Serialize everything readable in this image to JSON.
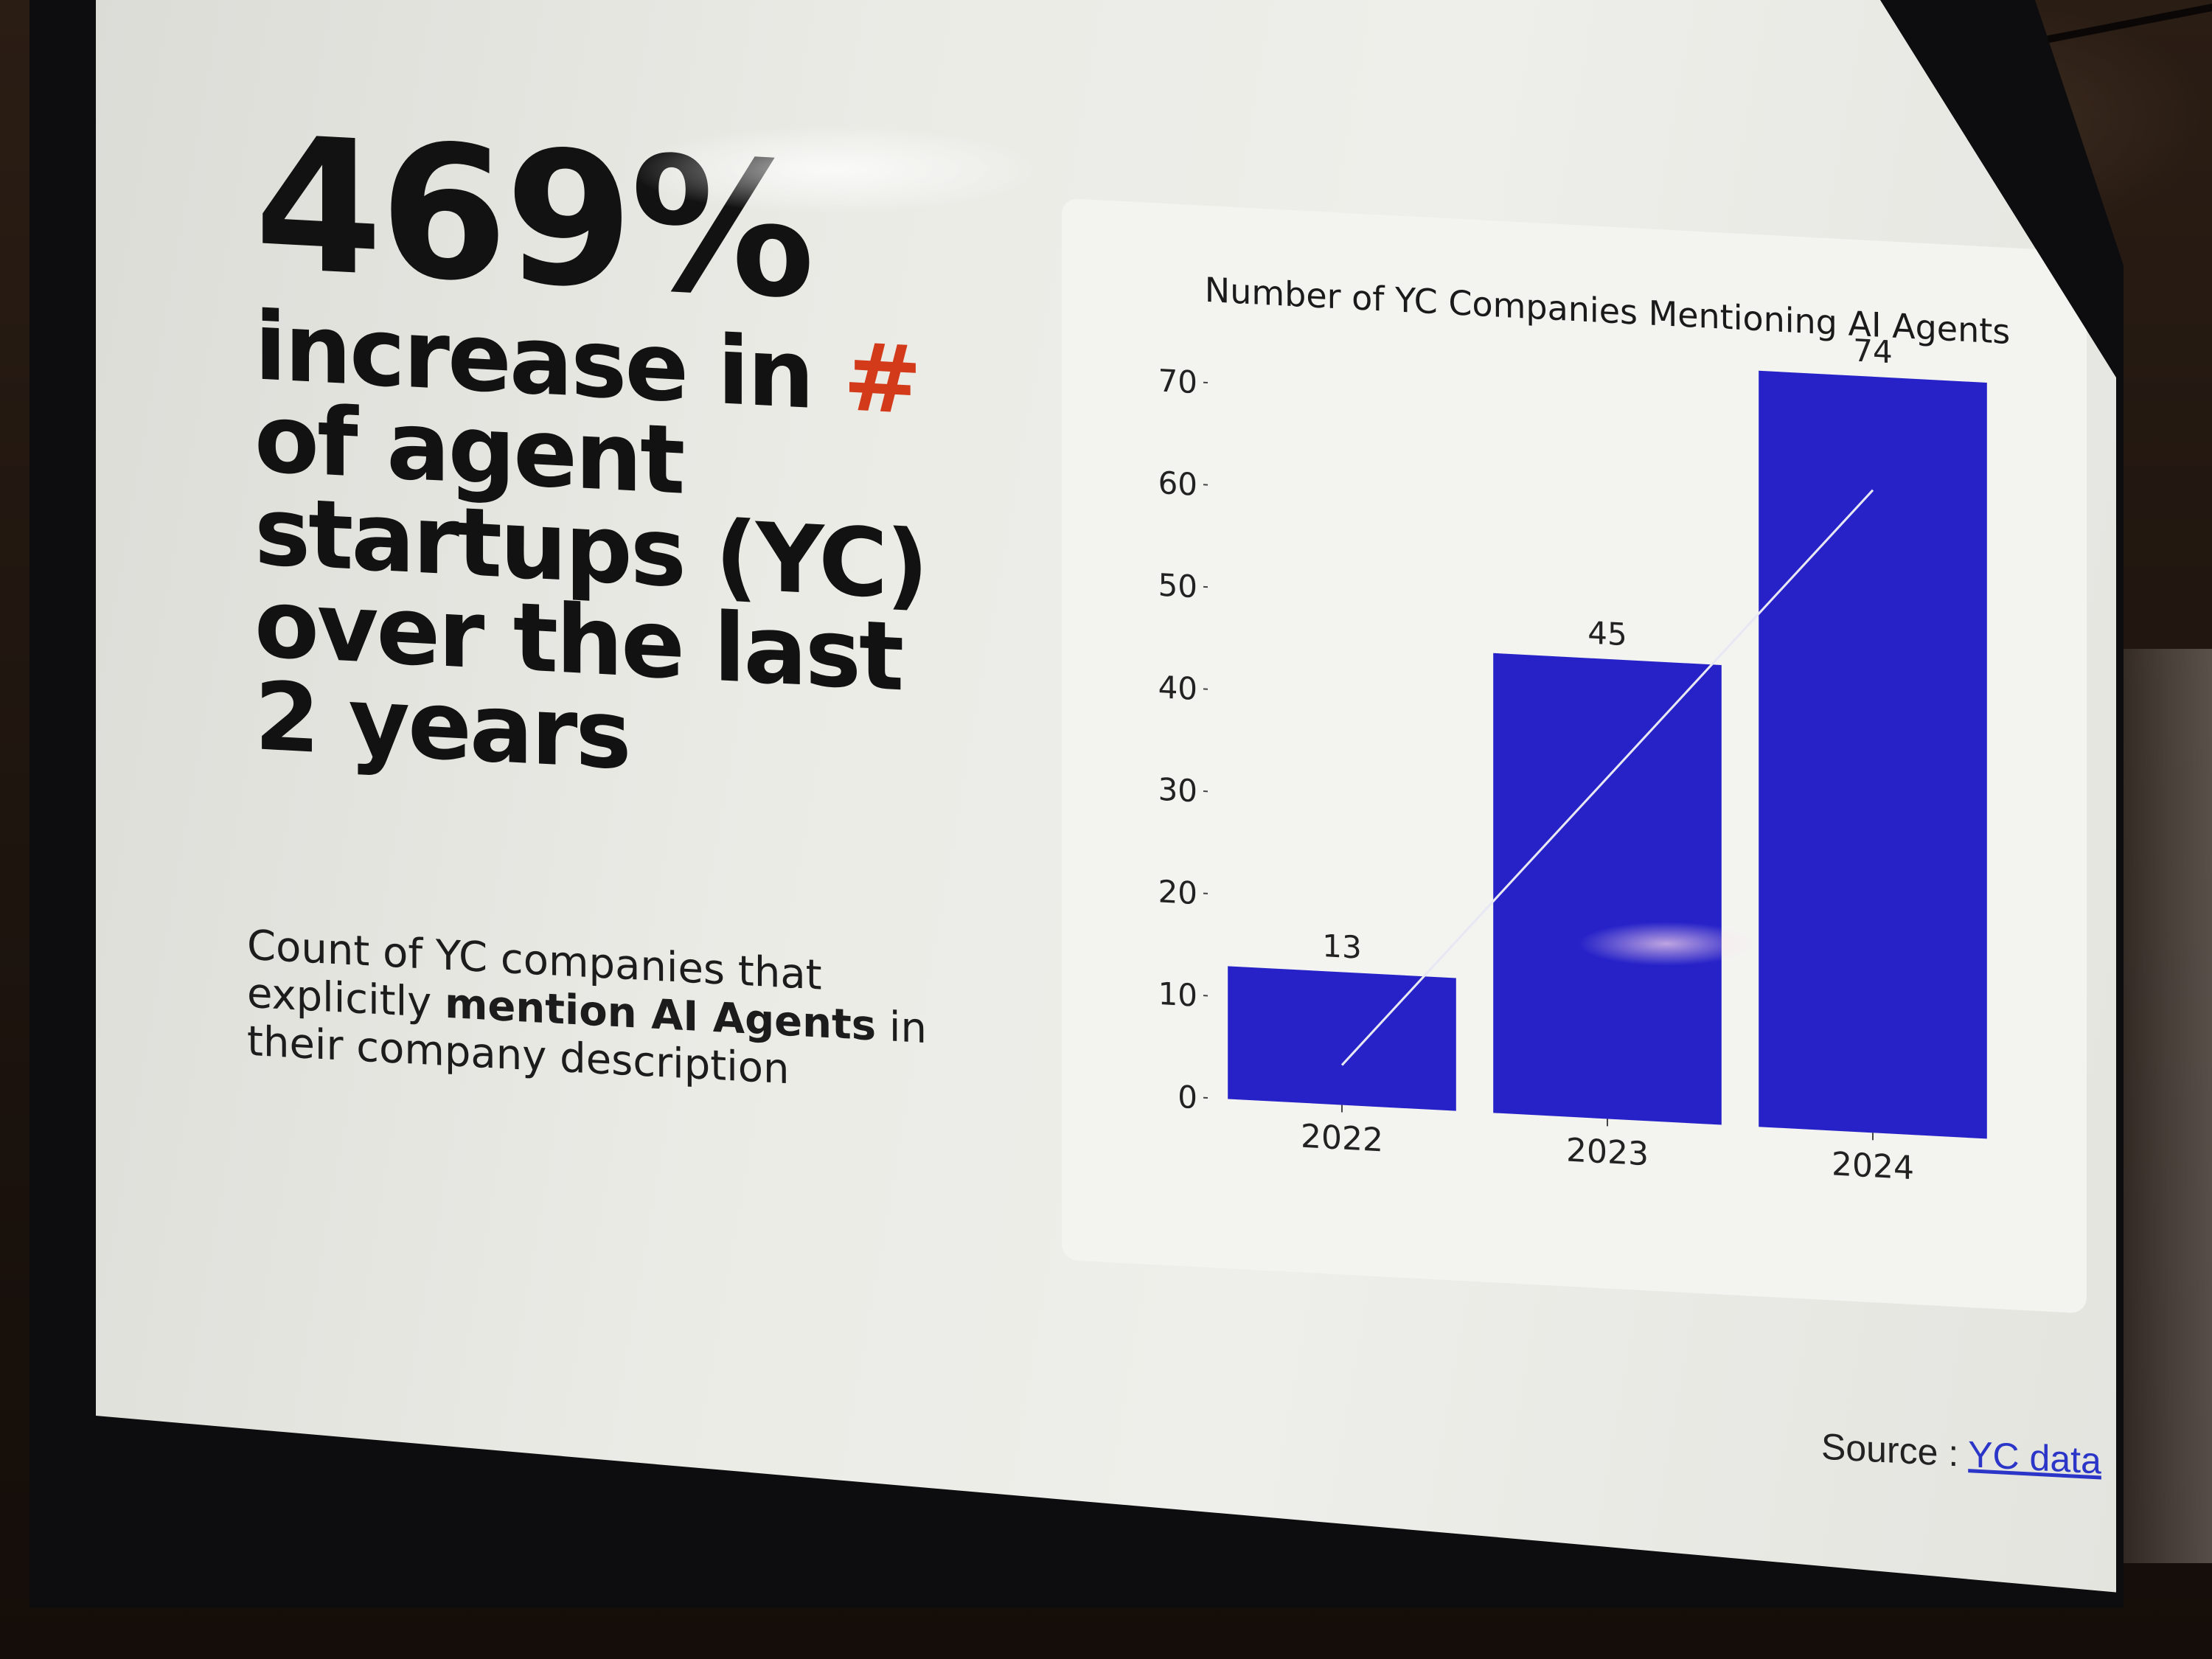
{
  "slide": {
    "big_stat": "469%",
    "statement_prefix": "increase in ",
    "statement_hash": "#",
    "statement_suffix": " of agent startups (YC) over the last 2 years",
    "subtext_before": "Count of YC companies that explicitly ",
    "subtext_bold": "mention AI Agents",
    "subtext_after": " in their company description",
    "source_label": "Source : ",
    "source_link": "YC data"
  },
  "colors": {
    "bar": "#2622c8",
    "accent_hash": "#d23a1a",
    "link": "#2b36c8"
  },
  "chart_data": {
    "type": "bar",
    "title": "Number of YC Companies Mentioning AI Agents",
    "categories": [
      "2022",
      "2023",
      "2024"
    ],
    "values": [
      13,
      45,
      74
    ],
    "data_labels": [
      "13",
      "45",
      "74"
    ],
    "yticks": [
      "0",
      "10",
      "20",
      "30",
      "40",
      "50",
      "60",
      "70"
    ],
    "ylim": [
      0,
      70
    ],
    "xlabel": "",
    "ylabel": "",
    "grid": false,
    "trend_line": true
  }
}
